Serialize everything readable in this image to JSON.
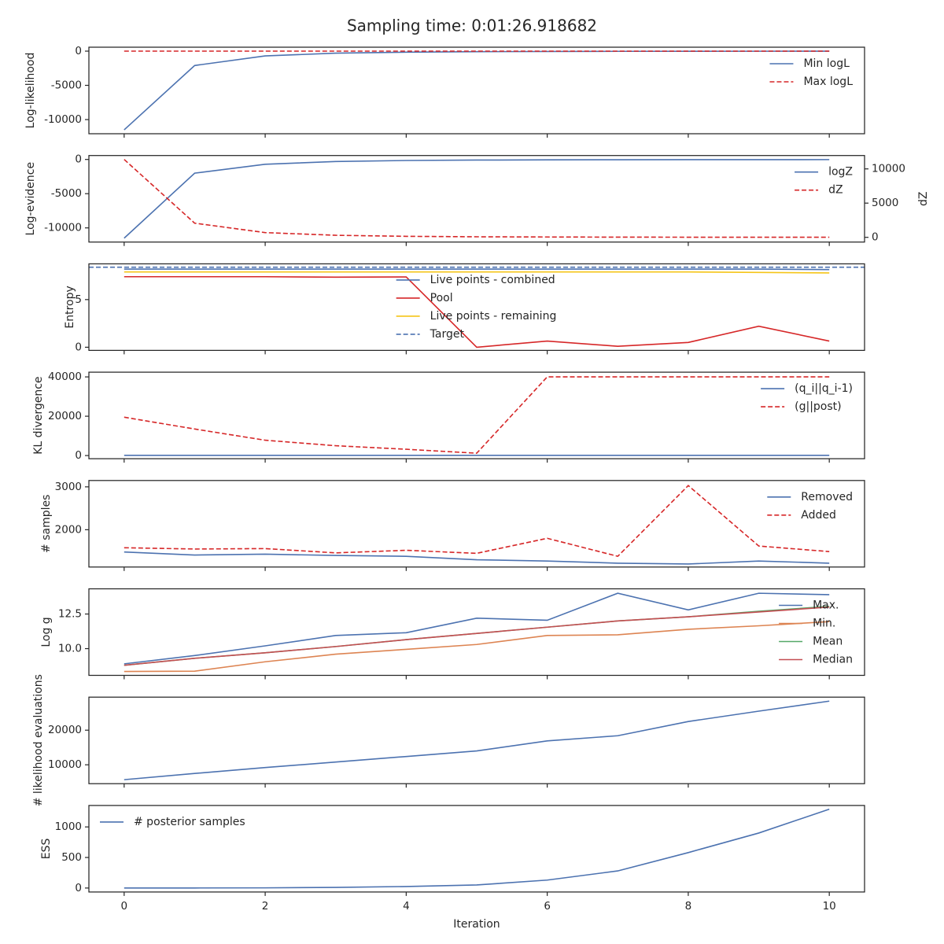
{
  "title": "Sampling time: 0:01:26.918682",
  "chart_data": [
    {
      "type": "line",
      "ylabel": "Log-likelihood",
      "x": [
        0,
        1,
        2,
        3,
        4,
        5,
        6,
        7,
        8,
        9,
        10
      ],
      "xlim": [
        -0.5,
        10.5
      ],
      "xticks": [
        0,
        2,
        4,
        6,
        8,
        10
      ],
      "ylim": [
        -12070,
        575
      ],
      "yticks": [
        -10000,
        -5000,
        0
      ],
      "legend": "upper right",
      "series": [
        {
          "name": "Min logL",
          "color": "#4c72b0",
          "dashed": false,
          "values": [
            -11500,
            -2100,
            -700,
            -300,
            -150,
            -80,
            -50,
            -30,
            -20,
            -15,
            -10
          ]
        },
        {
          "name": "Max logL",
          "color": "#d62728",
          "dashed": true,
          "values": [
            0,
            0,
            0,
            0,
            0,
            0,
            0,
            0,
            0,
            0,
            0
          ]
        }
      ]
    },
    {
      "type": "line",
      "ylabel": "Log-evidence",
      "y2label": "dZ",
      "x": [
        0,
        1,
        2,
        3,
        4,
        5,
        6,
        7,
        8,
        9,
        10
      ],
      "xlim": [
        -0.5,
        10.5
      ],
      "xticks": [
        0,
        2,
        4,
        6,
        8,
        10
      ],
      "ylim": [
        -12070,
        575
      ],
      "yticks": [
        -10000,
        -5000,
        0
      ],
      "y2lim": [
        -690,
        11954
      ],
      "y2ticks": [
        0,
        5000,
        10000
      ],
      "legend": "upper right",
      "series": [
        {
          "name": "logZ",
          "color": "#4c72b0",
          "dashed": false,
          "values": [
            -11500,
            -2000,
            -700,
            -300,
            -150,
            -90,
            -60,
            -40,
            -30,
            -25,
            -20
          ]
        },
        {
          "name": "dZ",
          "color": "#d62728",
          "dashed": true,
          "axis": "y2",
          "values": [
            11380,
            2070,
            690,
            300,
            150,
            80,
            50,
            30,
            20,
            15,
            10
          ]
        }
      ]
    },
    {
      "type": "line",
      "ylabel": "Entropy",
      "x": [
        0,
        1,
        2,
        3,
        4,
        5,
        6,
        7,
        8,
        9,
        10
      ],
      "xlim": [
        -0.5,
        10.5
      ],
      "xticks": [
        0,
        2,
        4,
        6,
        8,
        10
      ],
      "ylim": [
        -0.33,
        8.75
      ],
      "yticks": [
        0,
        5
      ],
      "legend": "center",
      "series": [
        {
          "name": "Live points - combined",
          "color": "#4c72b0",
          "dashed": false,
          "values": [
            8.2,
            8.2,
            8.2,
            8.2,
            8.2,
            8.2,
            8.2,
            8.2,
            8.2,
            8.2,
            8.15
          ]
        },
        {
          "name": "Pool",
          "color": "#d62728",
          "dashed": false,
          "values": [
            7.4,
            7.4,
            7.4,
            7.35,
            7.38,
            0,
            0.65,
            0.1,
            0.5,
            2.2,
            0.65
          ]
        },
        {
          "name": "Live points - remaining",
          "color": "#f5c518",
          "dashed": false,
          "values": [
            7.9,
            7.9,
            7.9,
            7.9,
            7.9,
            7.9,
            7.9,
            7.9,
            7.9,
            7.85,
            7.8
          ]
        }
      ],
      "hline": {
        "name": "Target",
        "color": "#4c72b0",
        "dashed": true,
        "value": 8.4
      }
    },
    {
      "type": "line",
      "ylabel": "KL divergence",
      "x": [
        0,
        1,
        2,
        3,
        4,
        5,
        6,
        7,
        8,
        9,
        10
      ],
      "xlim": [
        -0.5,
        10.5
      ],
      "xticks": [
        0,
        2,
        4,
        6,
        8,
        10
      ],
      "ylim": [
        -1600,
        42400
      ],
      "yticks": [
        0,
        20000,
        40000
      ],
      "legend": "upper right",
      "series": [
        {
          "name": "(q_i||q_i-1)",
          "color": "#4c72b0",
          "dashed": false,
          "values": [
            100,
            100,
            100,
            100,
            100,
            100,
            100,
            100,
            100,
            100,
            100
          ]
        },
        {
          "name": "(g||post)",
          "color": "#d62728",
          "dashed": true,
          "values": [
            19500,
            13500,
            7800,
            5000,
            3200,
            1200,
            40000,
            40000,
            40000,
            40000,
            40000
          ]
        }
      ]
    },
    {
      "type": "line",
      "ylabel": "# samples",
      "x": [
        0,
        1,
        2,
        3,
        4,
        5,
        6,
        7,
        8,
        9,
        10
      ],
      "xlim": [
        -0.5,
        10.5
      ],
      "xticks": [
        0,
        2,
        4,
        6,
        8,
        10
      ],
      "ylim": [
        1130,
        3148
      ],
      "yticks": [
        2000,
        3000
      ],
      "legend": "upper right",
      "series": [
        {
          "name": "Removed",
          "color": "#4c72b0",
          "dashed": false,
          "values": [
            1480,
            1410,
            1430,
            1400,
            1380,
            1300,
            1270,
            1220,
            1200,
            1270,
            1220
          ]
        },
        {
          "name": "Added",
          "color": "#d62728",
          "dashed": true,
          "values": [
            1580,
            1550,
            1560,
            1460,
            1520,
            1450,
            1800,
            1380,
            3030,
            1620,
            1490
          ]
        }
      ]
    },
    {
      "type": "line",
      "ylabel": "Log g",
      "x": [
        0,
        1,
        2,
        3,
        4,
        5,
        6,
        7,
        8,
        9,
        10
      ],
      "xlim": [
        -0.5,
        10.5
      ],
      "xticks": [
        0,
        2,
        4,
        6,
        8,
        10
      ],
      "ylim": [
        8.07,
        14.32
      ],
      "yticks": [
        {
          "value": 10,
          "label": "10.0"
        },
        12.5
      ],
      "legend": "upper right",
      "series": [
        {
          "name": "Max.",
          "color": "#4c72b0",
          "dashed": false,
          "values": [
            8.9,
            9.5,
            10.2,
            10.95,
            11.15,
            12.2,
            12.05,
            14.0,
            12.8,
            14.0,
            13.9
          ]
        },
        {
          "name": "Min.",
          "color": "#dd8452",
          "dashed": false,
          "values": [
            8.35,
            8.37,
            9.05,
            9.6,
            9.95,
            10.3,
            10.95,
            11.0,
            11.4,
            11.65,
            11.95
          ]
        },
        {
          "name": "Mean",
          "color": "#55a868",
          "dashed": false,
          "values": [
            8.8,
            9.3,
            9.7,
            10.15,
            10.65,
            11.1,
            11.55,
            12.0,
            12.3,
            12.7,
            13.05
          ]
        },
        {
          "name": "Median",
          "color": "#c44e52",
          "dashed": false,
          "values": [
            8.8,
            9.3,
            9.7,
            10.15,
            10.65,
            11.1,
            11.55,
            12.0,
            12.3,
            12.65,
            13.0
          ]
        }
      ]
    },
    {
      "type": "line",
      "ylabel": "# likelihood evaluations",
      "x": [
        0,
        1,
        2,
        3,
        4,
        5,
        6,
        7,
        8,
        9,
        10
      ],
      "xlim": [
        -0.5,
        10.5
      ],
      "xticks": [
        0,
        2,
        4,
        6,
        8,
        10
      ],
      "ylim": [
        4545,
        29545
      ],
      "yticks": [
        10000,
        20000
      ],
      "series": [
        {
          "name": "# likelihood evaluations",
          "color": "#4c72b0",
          "dashed": false,
          "values": [
            5700,
            7500,
            9200,
            10800,
            12400,
            14000,
            16900,
            18400,
            22500,
            25500,
            28400
          ]
        }
      ]
    },
    {
      "type": "line",
      "ylabel": "ESS",
      "xlabel": "Iteration",
      "x": [
        0,
        1,
        2,
        3,
        4,
        5,
        6,
        7,
        8,
        9,
        10
      ],
      "xlim": [
        -0.5,
        10.5
      ],
      "xticks": [
        0,
        2,
        4,
        6,
        8,
        10
      ],
      "ylim": [
        -65,
        1351
      ],
      "yticks": [
        0,
        500,
        1000
      ],
      "legend": "upper left",
      "series": [
        {
          "name": "# posterior samples",
          "color": "#4c72b0",
          "dashed": false,
          "values": [
            0,
            1,
            3,
            10,
            25,
            50,
            130,
            280,
            580,
            900,
            1290
          ]
        }
      ]
    }
  ]
}
